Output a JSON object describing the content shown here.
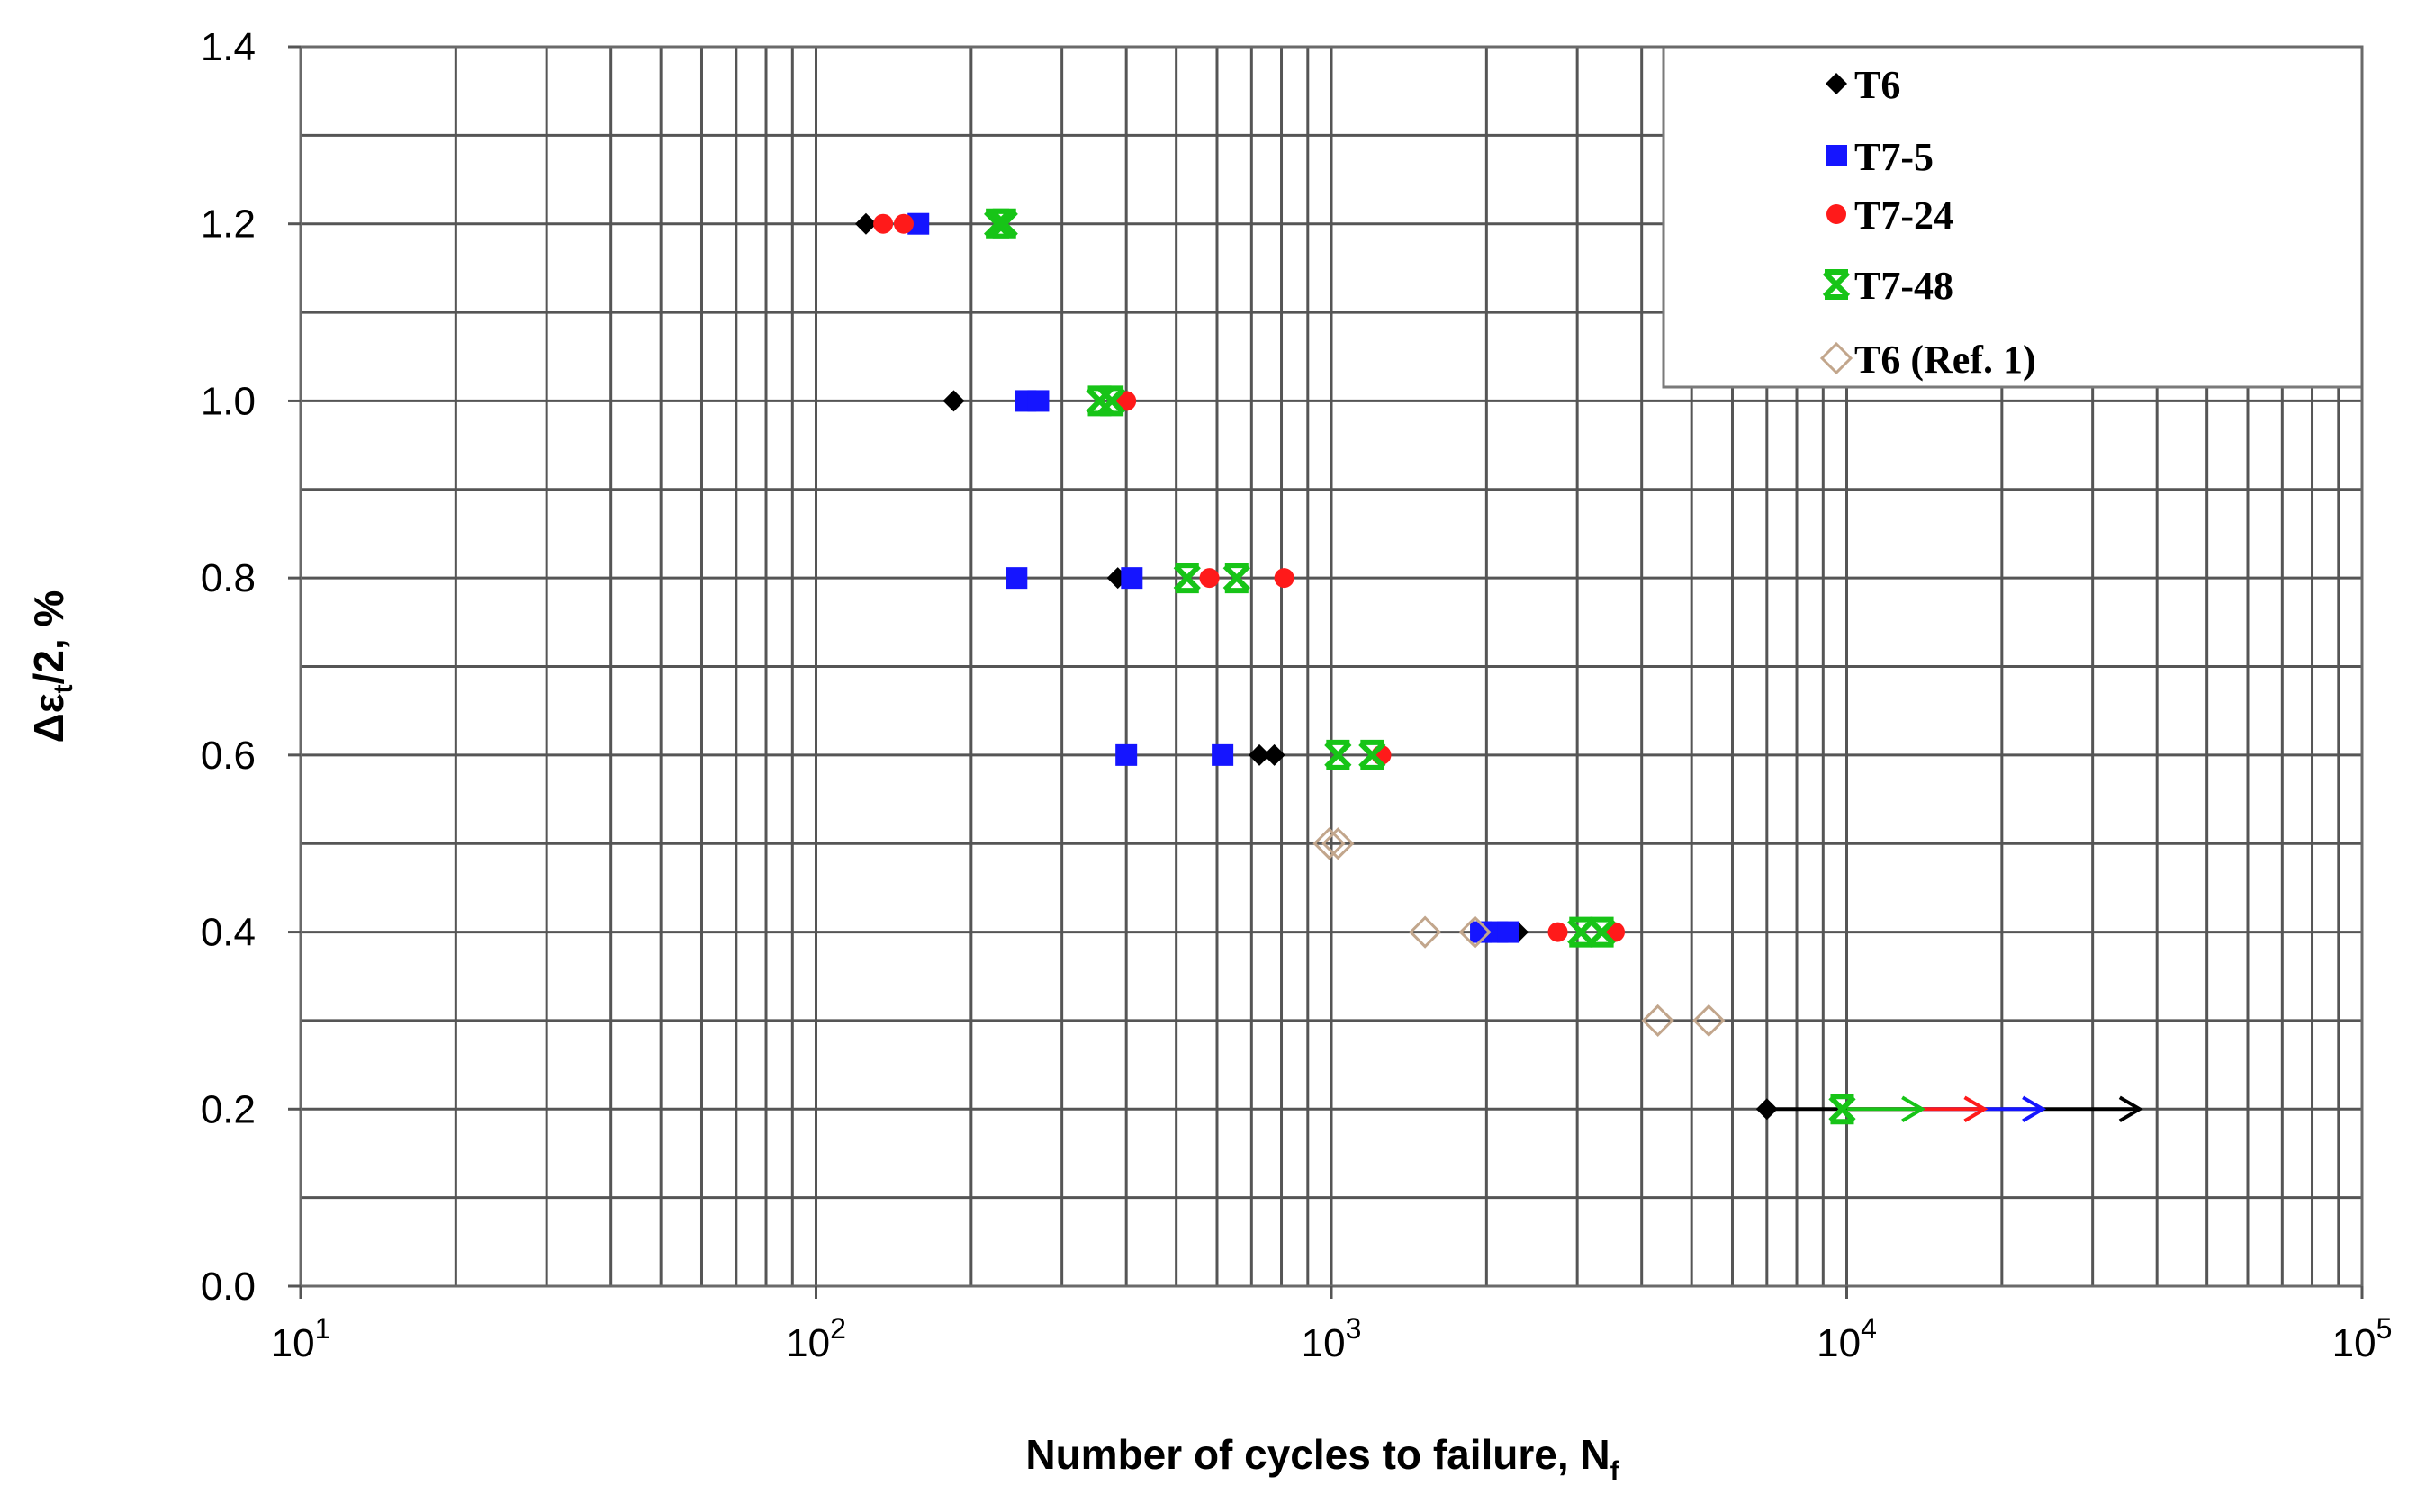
{
  "chart_data": {
    "type": "scatter",
    "xscale": "log",
    "xlim": [
      10,
      100000
    ],
    "ylim": [
      0.0,
      1.4
    ],
    "grid": true,
    "legend_position": "top-right",
    "xlabel": "Number of cycles to failure, N",
    "xlabel_subscript": "f",
    "ylabel": "Δε",
    "ylabel_subscript": "t",
    "ylabel_suffix": "/2, %",
    "x_tick_base": "10",
    "x_ticks": [
      {
        "value": 10,
        "exp": "1"
      },
      {
        "value": 100,
        "exp": "2"
      },
      {
        "value": 1000,
        "exp": "3"
      },
      {
        "value": 10000,
        "exp": "4"
      },
      {
        "value": 100000,
        "exp": "5"
      }
    ],
    "y_ticks": [
      "0.0",
      "0.2",
      "0.4",
      "0.6",
      "0.8",
      "1.0",
      "1.2",
      "1.4"
    ],
    "series": [
      {
        "name": "T6",
        "marker": "diamond-filled",
        "color": "#000000",
        "points": [
          [
            125,
            1.2
          ],
          [
            185,
            1.0
          ],
          [
            385,
            0.8
          ],
          [
            725,
            0.6
          ],
          [
            775,
            0.6
          ],
          [
            2300,
            0.4
          ],
          [
            7000,
            0.2
          ]
        ],
        "runouts": [
          {
            "from": [
              7000,
              0.2
            ],
            "to": [
              37000,
              0.2
            ]
          }
        ]
      },
      {
        "name": "T7-5",
        "marker": "square",
        "color": "#1515ff",
        "points": [
          [
            158,
            1.2
          ],
          [
            255,
            1.0
          ],
          [
            270,
            1.0
          ],
          [
            245,
            0.8
          ],
          [
            410,
            0.8
          ],
          [
            400,
            0.6
          ],
          [
            615,
            0.6
          ],
          [
            1950,
            0.4
          ],
          [
            2100,
            0.4
          ],
          [
            2200,
            0.4
          ]
        ],
        "runouts": [
          {
            "from": [
              10000,
              0.2
            ],
            "to": [
              24000,
              0.2
            ]
          }
        ]
      },
      {
        "name": "T7-24",
        "marker": "circle",
        "color": "#ff1a1a",
        "points": [
          [
            135,
            1.2
          ],
          [
            148,
            1.2
          ],
          [
            400,
            1.0
          ],
          [
            580,
            0.8
          ],
          [
            810,
            0.8
          ],
          [
            1250,
            0.6
          ],
          [
            2750,
            0.4
          ],
          [
            3550,
            0.4
          ]
        ],
        "runouts": [
          {
            "from": [
              10000,
              0.2
            ],
            "to": [
              18500,
              0.2
            ]
          }
        ]
      },
      {
        "name": "T7-48",
        "marker": "x-bar",
        "color": "#17c417",
        "points": [
          [
            225,
            1.2
          ],
          [
            232,
            1.2
          ],
          [
            355,
            1.0
          ],
          [
            375,
            1.0
          ],
          [
            525,
            0.8
          ],
          [
            655,
            0.8
          ],
          [
            1030,
            0.6
          ],
          [
            1200,
            0.6
          ],
          [
            3050,
            0.4
          ],
          [
            3350,
            0.4
          ],
          [
            9800,
            0.2
          ]
        ],
        "runouts": [
          {
            "from": [
              10000,
              0.2
            ],
            "to": [
              14000,
              0.2
            ]
          }
        ]
      },
      {
        "name": "T6 (Ref. 1)",
        "marker": "diamond-open",
        "color": "#c2a68c",
        "points": [
          [
            990,
            0.5
          ],
          [
            1030,
            0.5
          ],
          [
            1520,
            0.4
          ],
          [
            1900,
            0.4
          ],
          [
            4300,
            0.3
          ],
          [
            5400,
            0.3
          ]
        ],
        "runouts": []
      }
    ]
  }
}
